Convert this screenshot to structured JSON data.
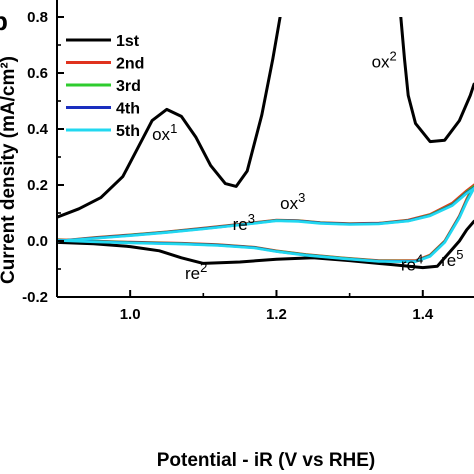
{
  "chart_data": {
    "type": "line",
    "panel_label": "b",
    "xlabel": "Potential - iR (V vs RHE)",
    "ylabel": "Current density (mA/cm²)",
    "xlim": [
      0.9,
      1.47
    ],
    "ylim": [
      -0.2,
      0.8
    ],
    "x_ticks": [
      "1.0",
      "1.2",
      "1.4"
    ],
    "x_tick_values": [
      1.0,
      1.2,
      1.4
    ],
    "y_ticks": [
      "-0.2",
      "0.0",
      "0.2",
      "0.4",
      "0.6",
      "0.8"
    ],
    "y_tick_values": [
      -0.2,
      0.0,
      0.2,
      0.4,
      0.6,
      0.8
    ],
    "grid": false,
    "legend_position": "top-left",
    "series": [
      {
        "name": "1st",
        "color": "#000000",
        "segments": [
          {
            "points": [
              [
                0.9,
                0.085
              ],
              [
                0.93,
                0.115
              ],
              [
                0.96,
                0.155
              ],
              [
                0.99,
                0.23
              ],
              [
                1.01,
                0.33
              ],
              [
                1.03,
                0.43
              ],
              [
                1.05,
                0.47
              ],
              [
                1.07,
                0.445
              ],
              [
                1.09,
                0.37
              ],
              [
                1.11,
                0.27
              ],
              [
                1.13,
                0.205
              ],
              [
                1.145,
                0.195
              ],
              [
                1.16,
                0.25
              ],
              [
                1.18,
                0.45
              ],
              [
                1.195,
                0.65
              ],
              [
                1.205,
                0.8
              ]
            ]
          },
          {
            "points": [
              [
                1.37,
                0.8
              ],
              [
                1.375,
                0.65
              ],
              [
                1.38,
                0.52
              ],
              [
                1.39,
                0.42
              ],
              [
                1.41,
                0.355
              ],
              [
                1.43,
                0.36
              ],
              [
                1.45,
                0.43
              ],
              [
                1.465,
                0.52
              ],
              [
                1.47,
                0.56
              ]
            ]
          },
          {
            "points": [
              [
                1.47,
                0.07
              ],
              [
                1.46,
                0.04
              ],
              [
                1.45,
                0.0
              ],
              [
                1.44,
                -0.03
              ],
              [
                1.43,
                -0.06
              ],
              [
                1.42,
                -0.09
              ],
              [
                1.4,
                -0.095
              ],
              [
                1.36,
                -0.085
              ],
              [
                1.3,
                -0.07
              ],
              [
                1.25,
                -0.06
              ],
              [
                1.2,
                -0.065
              ],
              [
                1.15,
                -0.075
              ],
              [
                1.1,
                -0.08
              ],
              [
                1.07,
                -0.06
              ],
              [
                1.04,
                -0.035
              ],
              [
                1.0,
                -0.02
              ],
              [
                0.95,
                -0.01
              ],
              [
                0.9,
                -0.005
              ]
            ]
          }
        ]
      },
      {
        "name": "2nd",
        "color": "#e0321e",
        "segments": [
          {
            "points": [
              [
                0.9,
                0.0
              ],
              [
                0.95,
                0.012
              ],
              [
                1.0,
                0.022
              ],
              [
                1.05,
                0.033
              ],
              [
                1.1,
                0.046
              ],
              [
                1.15,
                0.06
              ],
              [
                1.2,
                0.075
              ],
              [
                1.23,
                0.073
              ],
              [
                1.26,
                0.066
              ],
              [
                1.3,
                0.062
              ],
              [
                1.34,
                0.064
              ],
              [
                1.38,
                0.075
              ],
              [
                1.41,
                0.095
              ],
              [
                1.44,
                0.135
              ],
              [
                1.46,
                0.18
              ],
              [
                1.47,
                0.2
              ]
            ]
          },
          {
            "points": [
              [
                1.47,
                0.2
              ],
              [
                1.46,
                0.15
              ],
              [
                1.45,
                0.09
              ],
              [
                1.43,
                0.0
              ],
              [
                1.41,
                -0.05
              ],
              [
                1.39,
                -0.07
              ],
              [
                1.34,
                -0.07
              ],
              [
                1.29,
                -0.06
              ],
              [
                1.24,
                -0.048
              ],
              [
                1.2,
                -0.035
              ],
              [
                1.17,
                -0.022
              ],
              [
                1.12,
                -0.013
              ],
              [
                1.07,
                -0.008
              ],
              [
                1.0,
                -0.004
              ],
              [
                0.95,
                0.0
              ],
              [
                0.9,
                0.005
              ]
            ]
          }
        ]
      },
      {
        "name": "3rd",
        "color": "#2ecc2e",
        "segments": [
          {
            "points": [
              [
                0.9,
                0.0
              ],
              [
                0.95,
                0.011
              ],
              [
                1.0,
                0.021
              ],
              [
                1.05,
                0.032
              ],
              [
                1.1,
                0.045
              ],
              [
                1.15,
                0.059
              ],
              [
                1.2,
                0.074
              ],
              [
                1.23,
                0.072
              ],
              [
                1.26,
                0.065
              ],
              [
                1.3,
                0.061
              ],
              [
                1.34,
                0.063
              ],
              [
                1.38,
                0.073
              ],
              [
                1.41,
                0.093
              ],
              [
                1.44,
                0.13
              ],
              [
                1.46,
                0.175
              ],
              [
                1.47,
                0.195
              ]
            ]
          },
          {
            "points": [
              [
                1.47,
                0.195
              ],
              [
                1.46,
                0.145
              ],
              [
                1.45,
                0.087
              ],
              [
                1.43,
                -0.002
              ],
              [
                1.41,
                -0.052
              ],
              [
                1.39,
                -0.072
              ],
              [
                1.34,
                -0.071
              ],
              [
                1.29,
                -0.061
              ],
              [
                1.24,
                -0.049
              ],
              [
                1.2,
                -0.036
              ],
              [
                1.17,
                -0.023
              ],
              [
                1.12,
                -0.014
              ],
              [
                1.07,
                -0.009
              ],
              [
                1.0,
                -0.005
              ],
              [
                0.95,
                -0.001
              ],
              [
                0.9,
                0.004
              ]
            ]
          }
        ]
      },
      {
        "name": "4th",
        "color": "#1a2fbf",
        "segments": [
          {
            "points": [
              [
                0.9,
                0.0
              ],
              [
                0.95,
                0.01
              ],
              [
                1.0,
                0.02
              ],
              [
                1.05,
                0.031
              ],
              [
                1.1,
                0.044
              ],
              [
                1.15,
                0.058
              ],
              [
                1.2,
                0.073
              ],
              [
                1.23,
                0.071
              ],
              [
                1.26,
                0.064
              ],
              [
                1.3,
                0.06
              ],
              [
                1.34,
                0.062
              ],
              [
                1.38,
                0.072
              ],
              [
                1.41,
                0.091
              ],
              [
                1.44,
                0.128
              ],
              [
                1.46,
                0.172
              ],
              [
                1.47,
                0.19
              ]
            ]
          },
          {
            "points": [
              [
                1.47,
                0.19
              ],
              [
                1.46,
                0.142
              ],
              [
                1.45,
                0.085
              ],
              [
                1.43,
                -0.004
              ],
              [
                1.41,
                -0.054
              ],
              [
                1.39,
                -0.073
              ],
              [
                1.34,
                -0.072
              ],
              [
                1.29,
                -0.062
              ],
              [
                1.24,
                -0.05
              ],
              [
                1.2,
                -0.037
              ],
              [
                1.17,
                -0.024
              ],
              [
                1.12,
                -0.015
              ],
              [
                1.07,
                -0.01
              ],
              [
                1.0,
                -0.006
              ],
              [
                0.95,
                -0.002
              ],
              [
                0.9,
                0.003
              ]
            ]
          }
        ]
      },
      {
        "name": "5th",
        "color": "#22d8f0",
        "segments": [
          {
            "points": [
              [
                0.9,
                0.0
              ],
              [
                0.95,
                0.009
              ],
              [
                1.0,
                0.019
              ],
              [
                1.05,
                0.03
              ],
              [
                1.1,
                0.043
              ],
              [
                1.15,
                0.057
              ],
              [
                1.2,
                0.072
              ],
              [
                1.23,
                0.07
              ],
              [
                1.26,
                0.063
              ],
              [
                1.3,
                0.059
              ],
              [
                1.34,
                0.061
              ],
              [
                1.38,
                0.071
              ],
              [
                1.41,
                0.09
              ],
              [
                1.44,
                0.126
              ],
              [
                1.46,
                0.17
              ],
              [
                1.47,
                0.188
              ]
            ]
          },
          {
            "points": [
              [
                1.47,
                0.188
              ],
              [
                1.46,
                0.14
              ],
              [
                1.45,
                0.083
              ],
              [
                1.43,
                -0.005
              ],
              [
                1.41,
                -0.055
              ],
              [
                1.39,
                -0.074
              ],
              [
                1.34,
                -0.073
              ],
              [
                1.29,
                -0.063
              ],
              [
                1.24,
                -0.051
              ],
              [
                1.2,
                -0.038
              ],
              [
                1.17,
                -0.025
              ],
              [
                1.12,
                -0.016
              ],
              [
                1.07,
                -0.011
              ],
              [
                1.0,
                -0.007
              ],
              [
                0.95,
                -0.003
              ],
              [
                0.9,
                0.002
              ]
            ]
          }
        ]
      }
    ],
    "annotations": [
      {
        "base": "ox",
        "sup": "1",
        "x": 1.03,
        "y": 0.36
      },
      {
        "base": "ox",
        "sup": "2",
        "x": 1.33,
        "y": 0.62
      },
      {
        "base": "ox",
        "sup": "3",
        "x": 1.205,
        "y": 0.115
      },
      {
        "base": "re",
        "sup": "2",
        "x": 1.075,
        "y": -0.135
      },
      {
        "base": "re",
        "sup": "3",
        "x": 1.14,
        "y": 0.04
      },
      {
        "base": "re",
        "sup": "4",
        "x": 1.37,
        "y": -0.105
      },
      {
        "base": "re",
        "sup": "5",
        "x": 1.425,
        "y": -0.09
      }
    ]
  }
}
